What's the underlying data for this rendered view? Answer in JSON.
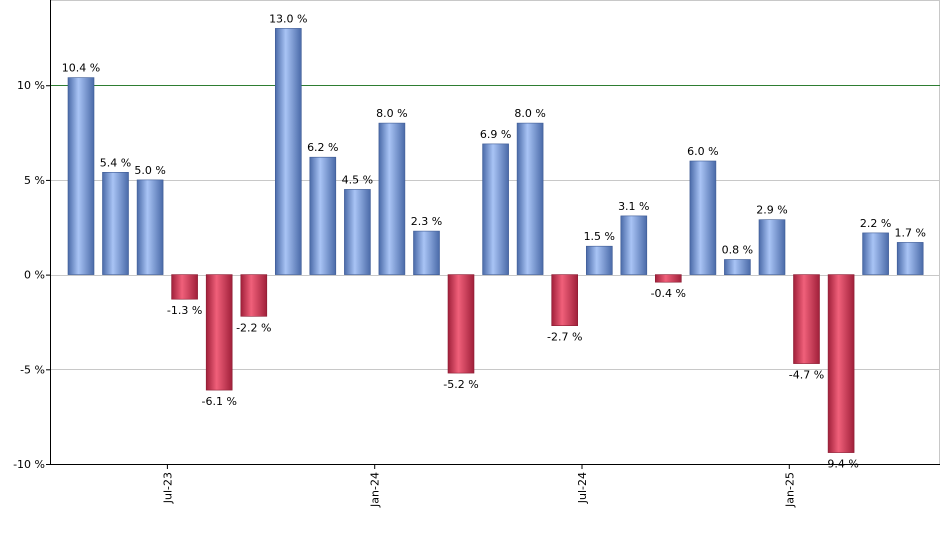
{
  "chart_data": {
    "type": "bar",
    "title": "",
    "xlabel": "",
    "ylabel": "",
    "ylim": [
      -10,
      14.5
    ],
    "y_ticks": [
      -10,
      -5,
      0,
      5,
      10
    ],
    "y_tick_labels": [
      "-10 %",
      "-5 %",
      "0 %",
      "5 %",
      "10 %"
    ],
    "x_ticks": [
      {
        "label": "Jul-23",
        "index": 2.5
      },
      {
        "label": "Jan-24",
        "index": 8.5
      },
      {
        "label": "Jul-24",
        "index": 14.5
      },
      {
        "label": "Jan-25",
        "index": 20.5
      }
    ],
    "reference_line": 10,
    "grid": true,
    "values": [
      10.4,
      5.4,
      5.0,
      -1.3,
      -6.1,
      -2.2,
      13.0,
      6.2,
      4.5,
      8.0,
      2.3,
      -5.2,
      6.9,
      8.0,
      -2.7,
      1.5,
      3.1,
      -0.4,
      6.0,
      0.8,
      2.9,
      -4.7,
      -9.4,
      2.2,
      1.7
    ],
    "value_labels": [
      "10.4 %",
      "5.4 %",
      "5.0 %",
      "-1.3 %",
      "-6.1 %",
      "-2.2 %",
      "13.0 %",
      "6.2 %",
      "4.5 %",
      "8.0 %",
      "2.3 %",
      "-5.2 %",
      "6.9 %",
      "8.0 %",
      "-2.7 %",
      "1.5 %",
      "3.1 %",
      "-0.4 %",
      "6.0 %",
      "0.8 %",
      "2.9 %",
      "-4.7 %",
      "-9.4 %",
      "2.2 %",
      "1.7 %"
    ],
    "colors": {
      "positive_light": "#a9c4f5",
      "positive_dark": "#4a6aa8",
      "negative_light": "#f0607a",
      "negative_dark": "#a0203a",
      "reference_line": "#2e7d32",
      "grid": "#c8c8c8",
      "axis": "#000000"
    }
  }
}
